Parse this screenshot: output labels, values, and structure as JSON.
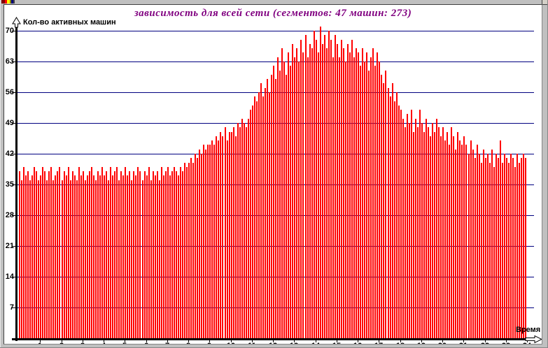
{
  "chart_data": {
    "type": "bar",
    "title": "зависимость для всей сети (сегментов: 47 машин: 273)",
    "ylabel": "Кол-во активных машин",
    "xlabel": "Время",
    "x_unit": "hour",
    "samples_per_hour": 10,
    "x_ticks": [
      1,
      2,
      3,
      4,
      5,
      6,
      7,
      8,
      9,
      10,
      11,
      12,
      13,
      14,
      15,
      16,
      17,
      18,
      19,
      20,
      21,
      22,
      23,
      24
    ],
    "y_ticks": [
      7,
      14,
      21,
      28,
      35,
      42,
      49,
      56,
      63,
      70
    ],
    "ylim": [
      0,
      74
    ],
    "grid": true,
    "legend_position": "none",
    "title_color": "#800080",
    "bar_color": "#ff0000",
    "grid_color": "#000080",
    "axis_color": "#000000",
    "values": [
      38,
      36,
      39,
      37,
      38,
      36,
      37,
      39,
      38,
      36,
      37,
      39,
      38,
      36,
      38,
      39,
      36,
      37,
      38,
      39,
      36,
      38,
      37,
      39,
      36,
      38,
      37,
      36,
      39,
      37,
      38,
      36,
      37,
      38,
      39,
      37,
      36,
      38,
      37,
      39,
      37,
      38,
      36,
      39,
      37,
      38,
      39,
      36,
      38,
      37,
      39,
      37,
      38,
      36,
      38,
      37,
      39,
      38,
      36,
      38,
      37,
      39,
      36,
      38,
      37,
      38,
      36,
      39,
      37,
      38,
      39,
      37,
      38,
      39,
      38,
      37,
      39,
      38,
      40,
      39,
      40,
      41,
      40,
      42,
      41,
      43,
      42,
      44,
      43,
      44,
      44,
      45,
      44,
      46,
      45,
      47,
      46,
      48,
      45,
      47,
      47,
      48,
      46,
      49,
      48,
      50,
      49,
      48,
      50,
      52,
      53,
      55,
      54,
      56,
      58,
      55,
      57,
      59,
      56,
      60,
      62,
      59,
      64,
      61,
      66,
      63,
      60,
      65,
      62,
      67,
      64,
      66,
      63,
      68,
      65,
      69,
      64,
      67,
      66,
      70,
      68,
      65,
      71,
      67,
      69,
      66,
      70,
      68,
      64,
      69,
      67,
      64,
      68,
      66,
      63,
      67,
      65,
      68,
      64,
      66,
      65,
      62,
      66,
      63,
      65,
      61,
      64,
      66,
      62,
      65,
      63,
      60,
      58,
      61,
      57,
      55,
      58,
      54,
      56,
      53,
      52,
      50,
      48,
      51,
      49,
      52,
      47,
      50,
      48,
      52,
      49,
      47,
      50,
      48,
      46,
      49,
      47,
      50,
      48,
      46,
      48,
      45,
      47,
      44,
      48,
      46,
      43,
      47,
      45,
      44,
      46,
      44,
      42,
      45,
      43,
      41,
      44,
      42,
      40,
      43,
      41,
      42,
      40,
      43,
      39,
      42,
      41,
      45,
      40,
      42,
      41,
      40,
      42,
      41,
      39,
      42,
      40,
      41,
      42,
      41
    ]
  }
}
